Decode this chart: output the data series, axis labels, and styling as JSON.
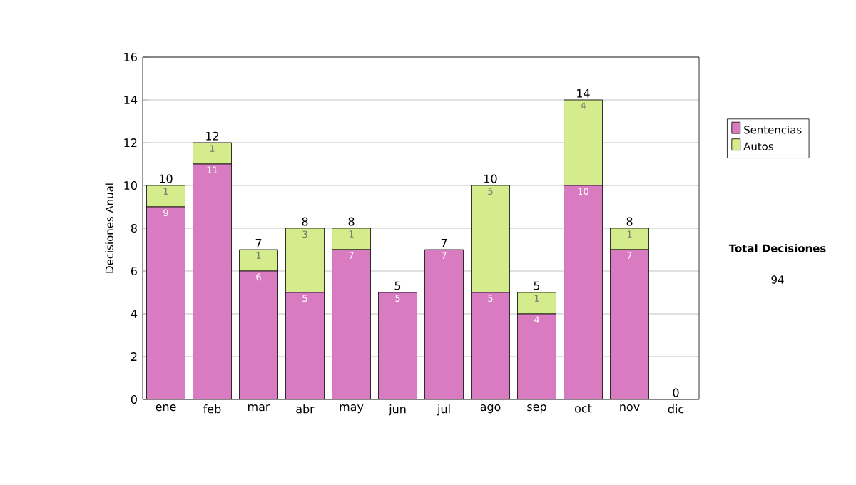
{
  "chart_data": {
    "type": "bar",
    "stacked": true,
    "ylabel": "Decisiones Anual",
    "categories": [
      "ene",
      "feb",
      "mar",
      "abr",
      "may",
      "jun",
      "jul",
      "ago",
      "sep",
      "oct",
      "nov",
      "dic"
    ],
    "series": [
      {
        "name": "Sentencias",
        "color": "#d87bc0",
        "values": [
          9,
          11,
          6,
          5,
          7,
          5,
          7,
          5,
          4,
          10,
          7,
          0
        ],
        "value_labels": [
          "9",
          "11",
          "6",
          "5",
          "7",
          "5",
          "7",
          "5",
          "4",
          "10",
          "7",
          null
        ]
      },
      {
        "name": "Autos",
        "color": "#d4ec8c",
        "values": [
          1,
          1,
          1,
          3,
          1,
          0,
          0,
          5,
          1,
          4,
          1,
          0
        ],
        "value_labels": [
          "1",
          "1",
          "1",
          "3",
          "1",
          null,
          null,
          "5",
          "1",
          "4",
          "1",
          null
        ]
      }
    ],
    "totals": [
      "10",
      "12",
      "7",
      "8",
      "8",
      "5",
      "7",
      "10",
      "5",
      "14",
      "8",
      "0"
    ],
    "ylim": [
      0,
      16
    ],
    "yticks": [
      0,
      2,
      4,
      6,
      8,
      10,
      12,
      14,
      16
    ],
    "grid": "y",
    "legend": "right",
    "annotations": [
      "Total Decisiones",
      "94"
    ]
  }
}
